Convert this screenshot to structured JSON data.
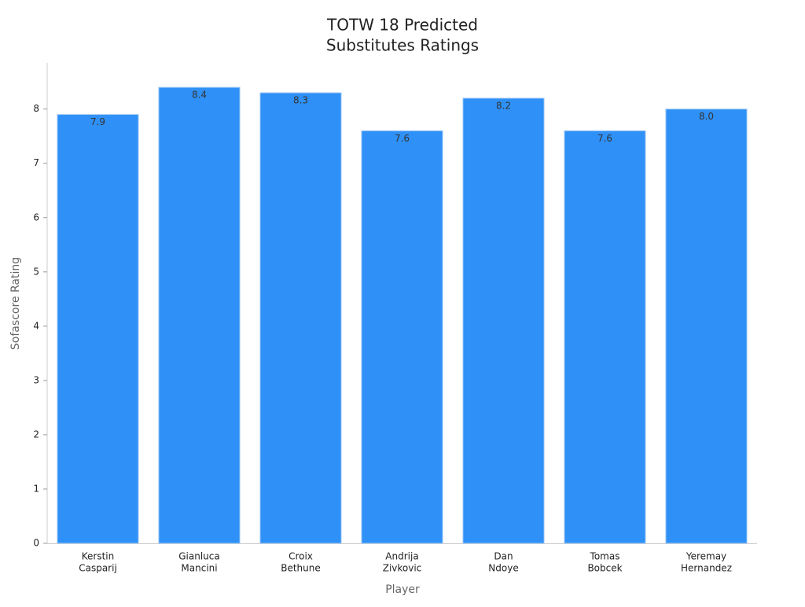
{
  "chart_data": {
    "type": "bar",
    "title": [
      "TOTW 18 Predicted",
      "Substitutes Ratings"
    ],
    "x_label": "Player",
    "y_label": "Sofascore Rating",
    "categories": [
      [
        "Kerstin",
        "Casparij"
      ],
      [
        "Gianluca",
        "Mancini"
      ],
      [
        "Croix",
        "Bethune"
      ],
      [
        "Andrija",
        "Zivkovic"
      ],
      [
        "Dan",
        "Ndoye"
      ],
      [
        "Tomas",
        "Bobcek"
      ],
      [
        "Yeremay",
        "Hernandez"
      ]
    ],
    "values": [
      7.9,
      8.4,
      8.3,
      7.6,
      8.2,
      7.6,
      8.0
    ],
    "value_labels": [
      "7.9",
      "8.4",
      "8.3",
      "7.6",
      "8.2",
      "7.6",
      "8.0"
    ],
    "color": "#2f91f7",
    "ylim": [
      0,
      8.85
    ],
    "yticks": [
      0,
      1,
      2,
      3,
      4,
      5,
      6,
      7,
      8
    ],
    "grid": false
  }
}
